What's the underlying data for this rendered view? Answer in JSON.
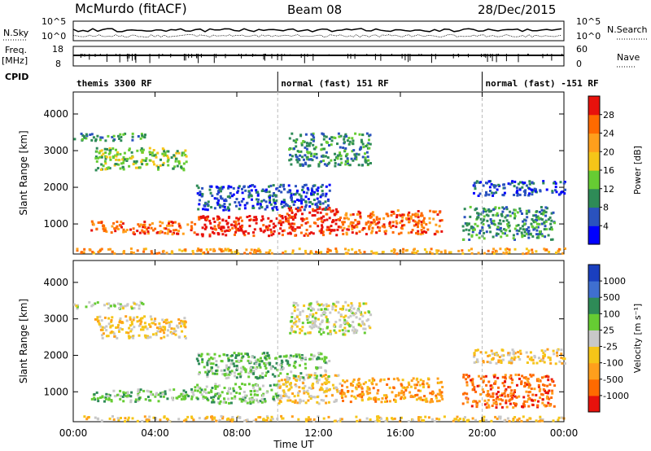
{
  "header": {
    "station": "McMurdo (fitACF)",
    "beam": "Beam 08",
    "date": "28/Dec/2015"
  },
  "left_labels": {
    "nsky": "N.Sky",
    "freq": "Freq.",
    "freq_unit": "[MHz]",
    "cpid": "CPID"
  },
  "right_labels": {
    "nsearch": "N.Search",
    "nave": "Nave"
  },
  "strip_ticks": {
    "noise_top": "10^5",
    "noise_bottom": "10^0",
    "noise_right_top": "10^5",
    "noise_right_bottom": "10^0",
    "freq_top": "18",
    "freq_bottom": "8",
    "nave_top": "60",
    "nave_bottom": "0"
  },
  "cpid_segments": [
    {
      "label": "themis 3300 RF",
      "start_hour": 0,
      "end_hour": 10
    },
    {
      "label": "normal (fast) 151 RF",
      "start_hour": 10,
      "end_hour": 20
    },
    {
      "label": "normal (fast) -151 RF",
      "start_hour": 20,
      "end_hour": 24
    }
  ],
  "chart_data": [
    {
      "type": "heatmap",
      "ylabel": "Slant Range [km]",
      "xlabel": "Time UT",
      "x_tick_labels": [
        "00:00",
        "04:00",
        "08:00",
        "12:00",
        "16:00",
        "20:00",
        "00:00"
      ],
      "x_ticks_hours": [
        0,
        4,
        8,
        12,
        16,
        20,
        24
      ],
      "xlim": [
        0,
        24
      ],
      "ylim": [
        180,
        4600
      ],
      "y_ticks": [
        1000,
        2000,
        3000,
        4000
      ],
      "y_tick_labels": [
        "1000",
        "2000",
        "3000",
        "4000"
      ],
      "colorbar": {
        "label": "Power [dB]",
        "range": [
          0,
          32
        ],
        "tick_labels": [
          "4",
          "8",
          "12",
          "16",
          "20",
          "24",
          "28"
        ],
        "colors": [
          "#0000ff",
          "#2a52be",
          "#2e8b57",
          "#66cc33",
          "#f5c518",
          "#ff9f1c",
          "#ff6a00",
          "#e8120c"
        ]
      },
      "echo_bands": [
        {
          "start_hour": 0.0,
          "end_hour": 3.5,
          "range_from": 3300,
          "range_to": 3500,
          "level": 2
        },
        {
          "start_hour": 1.0,
          "end_hour": 5.5,
          "range_from": 2500,
          "range_to": 3100,
          "level": 3
        },
        {
          "start_hour": 0.8,
          "end_hour": 5.8,
          "range_from": 750,
          "range_to": 1100,
          "level": 6
        },
        {
          "start_hour": 5.8,
          "end_hour": 10.0,
          "range_from": 700,
          "range_to": 1250,
          "level": 7
        },
        {
          "start_hour": 10.0,
          "end_hour": 13.0,
          "range_from": 700,
          "range_to": 1500,
          "level": 7
        },
        {
          "start_hour": 13.0,
          "end_hour": 18.0,
          "range_from": 750,
          "range_to": 1400,
          "level": 6
        },
        {
          "start_hour": 19.0,
          "end_hour": 23.5,
          "range_from": 600,
          "range_to": 1500,
          "level": 2
        },
        {
          "start_hour": 0.0,
          "end_hour": 24.0,
          "range_from": 220,
          "range_to": 360,
          "level": 5
        },
        {
          "start_hour": 6.0,
          "end_hour": 12.5,
          "range_from": 1400,
          "range_to": 2100,
          "level": 1
        },
        {
          "start_hour": 10.5,
          "end_hour": 14.5,
          "range_from": 2600,
          "range_to": 3500,
          "level": 2
        },
        {
          "start_hour": 19.5,
          "end_hour": 24.0,
          "range_from": 1800,
          "range_to": 2200,
          "level": 1
        }
      ]
    },
    {
      "type": "heatmap",
      "ylabel": "Slant Range [km]",
      "xlabel": "Time UT",
      "x_tick_labels": [
        "00:00",
        "04:00",
        "08:00",
        "12:00",
        "16:00",
        "20:00",
        "00:00"
      ],
      "x_ticks_hours": [
        0,
        4,
        8,
        12,
        16,
        20,
        24
      ],
      "xlim": [
        0,
        24
      ],
      "ylim": [
        180,
        4600
      ],
      "y_ticks": [
        1000,
        2000,
        3000,
        4000
      ],
      "y_tick_labels": [
        "1000",
        "2000",
        "3000",
        "4000"
      ],
      "colorbar": {
        "label": "Velocity [m s⁻¹]",
        "tick_labels": [
          "1000",
          "500",
          "100",
          "25",
          "-25",
          "-100",
          "-500",
          "-1000"
        ],
        "colors": [
          "#1a3fbf",
          "#3f6fd0",
          "#2e8b57",
          "#66cc33",
          "#c8c8c8",
          "#f5c518",
          "#ff9f1c",
          "#ff6a00",
          "#e8120c"
        ]
      },
      "echo_bands": [
        {
          "start_hour": 0.0,
          "end_hour": 3.5,
          "range_from": 3300,
          "range_to": 3500,
          "level": 4
        },
        {
          "start_hour": 1.0,
          "end_hour": 5.5,
          "range_from": 2500,
          "range_to": 3100,
          "level": 5
        },
        {
          "start_hour": 0.8,
          "end_hour": 5.8,
          "range_from": 750,
          "range_to": 1100,
          "level": 3
        },
        {
          "start_hour": 5.8,
          "end_hour": 10.0,
          "range_from": 700,
          "range_to": 1250,
          "level": 3
        },
        {
          "start_hour": 10.0,
          "end_hour": 13.0,
          "range_from": 700,
          "range_to": 1500,
          "level": 5
        },
        {
          "start_hour": 13.0,
          "end_hour": 18.0,
          "range_from": 750,
          "range_to": 1400,
          "level": 6
        },
        {
          "start_hour": 19.0,
          "end_hour": 23.5,
          "range_from": 600,
          "range_to": 1500,
          "level": 7
        },
        {
          "start_hour": 0.0,
          "end_hour": 24.0,
          "range_from": 220,
          "range_to": 360,
          "level": 5
        },
        {
          "start_hour": 6.0,
          "end_hour": 12.5,
          "range_from": 1400,
          "range_to": 2100,
          "level": 3
        },
        {
          "start_hour": 10.5,
          "end_hour": 14.5,
          "range_from": 2600,
          "range_to": 3500,
          "level": 4
        },
        {
          "start_hour": 19.5,
          "end_hour": 24.0,
          "range_from": 1800,
          "range_to": 2200,
          "level": 5
        }
      ]
    }
  ]
}
